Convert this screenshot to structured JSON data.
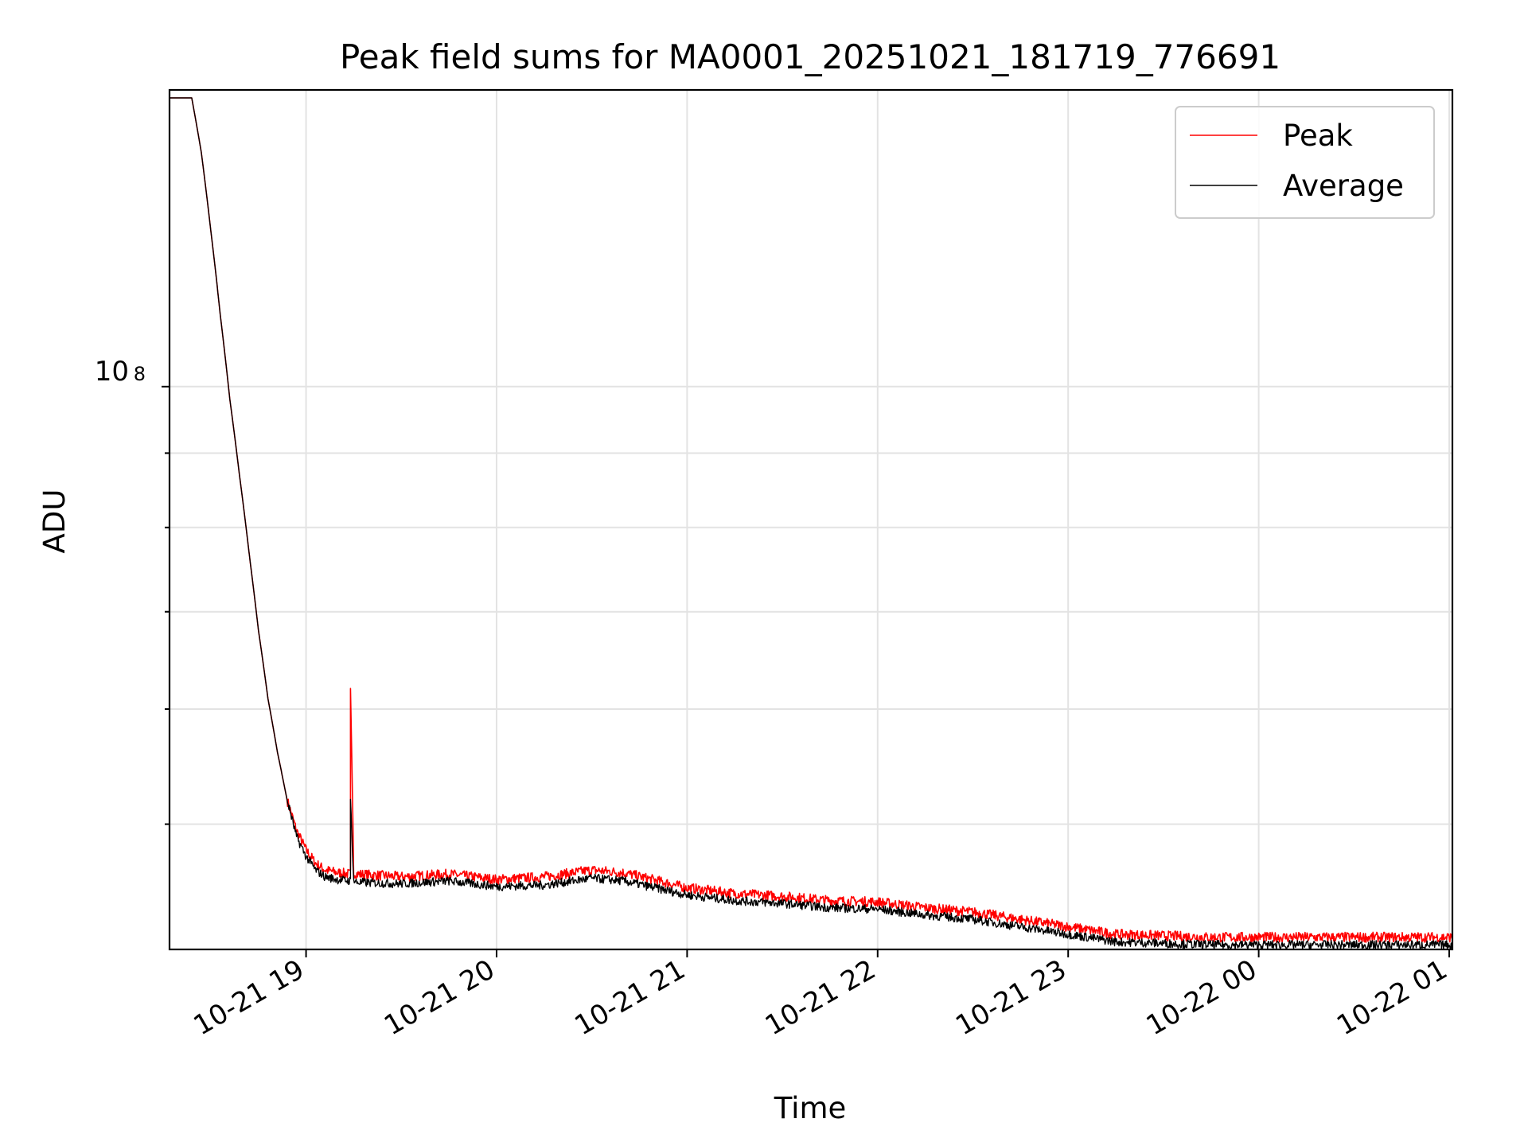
{
  "chart_data": {
    "type": "line",
    "title": "Peak field sums for MA0001_20251021_181719_776691",
    "xlabel": "Time",
    "ylabel": "ADU",
    "y_scale": "log",
    "grid": true,
    "legend_position": "upper right",
    "x_ticks": [
      "10-21 19",
      "10-21 20",
      "10-21 21",
      "10-21 22",
      "10-21 23",
      "10-22 00",
      "10-22 01"
    ],
    "y_tick_label": {
      "base": "10",
      "exponent": "8"
    },
    "x_range": [
      "2025-10-21 18:17",
      "2025-10-22 01:01"
    ],
    "y_range": [
      41000000,
      160000000
    ],
    "series": [
      {
        "name": "Peak",
        "color": "#ff0000",
        "x": [
          "2025-10-21 18:17",
          "2025-10-21 18:24",
          "2025-10-21 18:27",
          "2025-10-21 18:30",
          "2025-10-21 18:33",
          "2025-10-21 18:36",
          "2025-10-21 18:39",
          "2025-10-21 18:42",
          "2025-10-21 18:45",
          "2025-10-21 18:48",
          "2025-10-21 18:51",
          "2025-10-21 18:54",
          "2025-10-21 18:57",
          "2025-10-21 19:00",
          "2025-10-21 19:03",
          "2025-10-21 19:06",
          "2025-10-21 19:10",
          "2025-10-21 19:14",
          "2025-10-21 19:14",
          "2025-10-21 19:15",
          "2025-10-21 19:16",
          "2025-10-21 19:30",
          "2025-10-21 19:45",
          "2025-10-21 20:00",
          "2025-10-21 20:15",
          "2025-10-21 20:30",
          "2025-10-21 20:40",
          "2025-10-21 21:00",
          "2025-10-21 21:15",
          "2025-10-21 21:30",
          "2025-10-21 21:45",
          "2025-10-21 22:00",
          "2025-10-21 22:15",
          "2025-10-21 22:30",
          "2025-10-21 22:45",
          "2025-10-21 23:00",
          "2025-10-21 23:15",
          "2025-10-21 23:30",
          "2025-10-21 23:45",
          "2025-10-22 00:00",
          "2025-10-22 00:15",
          "2025-10-22 00:30",
          "2025-10-22 00:45",
          "2025-10-22 01:01"
        ],
        "y": [
          158000000,
          158000000,
          145000000,
          128000000,
          112000000,
          98000000,
          87000000,
          77000000,
          68000000,
          61000000,
          56000000,
          52000000,
          49500000,
          48000000,
          47000000,
          46500000,
          46300000,
          46200000,
          62000000,
          46300000,
          46200000,
          46000000,
          46200000,
          45800000,
          46000000,
          46500000,
          46300000,
          45200000,
          44800000,
          44600000,
          44300000,
          44200000,
          43800000,
          43500000,
          43000000,
          42500000,
          42000000,
          41900000,
          41800000,
          41800000,
          41800000,
          41800000,
          41800000,
          41800000
        ]
      },
      {
        "name": "Average",
        "color": "#000000",
        "x": [
          "2025-10-21 18:17",
          "2025-10-21 18:24",
          "2025-10-21 18:27",
          "2025-10-21 18:30",
          "2025-10-21 18:33",
          "2025-10-21 18:36",
          "2025-10-21 18:39",
          "2025-10-21 18:42",
          "2025-10-21 18:45",
          "2025-10-21 18:48",
          "2025-10-21 18:51",
          "2025-10-21 18:54",
          "2025-10-21 18:57",
          "2025-10-21 19:00",
          "2025-10-21 19:03",
          "2025-10-21 19:06",
          "2025-10-21 19:10",
          "2025-10-21 19:14",
          "2025-10-21 19:14",
          "2025-10-21 19:15",
          "2025-10-21 19:16",
          "2025-10-21 19:30",
          "2025-10-21 19:45",
          "2025-10-21 20:00",
          "2025-10-21 20:15",
          "2025-10-21 20:30",
          "2025-10-21 20:40",
          "2025-10-21 21:00",
          "2025-10-21 21:15",
          "2025-10-21 21:30",
          "2025-10-21 21:45",
          "2025-10-21 22:00",
          "2025-10-21 22:15",
          "2025-10-21 22:30",
          "2025-10-21 22:45",
          "2025-10-21 23:00",
          "2025-10-21 23:15",
          "2025-10-21 23:30",
          "2025-10-21 23:45",
          "2025-10-22 00:00",
          "2025-10-22 00:15",
          "2025-10-22 00:30",
          "2025-10-22 00:45",
          "2025-10-22 01:01"
        ],
        "y": [
          158000000,
          158000000,
          145000000,
          128000000,
          112000000,
          98000000,
          87000000,
          77000000,
          68000000,
          61000000,
          56000000,
          52000000,
          49000000,
          47500000,
          46500000,
          46000000,
          45800000,
          45700000,
          52000000,
          45700000,
          45600000,
          45500000,
          45700000,
          45300000,
          45400000,
          45900000,
          45700000,
          44700000,
          44300000,
          44100000,
          43800000,
          43700000,
          43300000,
          43000000,
          42500000,
          42000000,
          41500000,
          41400000,
          41300000,
          41300000,
          41300000,
          41300000,
          41300000,
          41300000
        ]
      }
    ]
  }
}
